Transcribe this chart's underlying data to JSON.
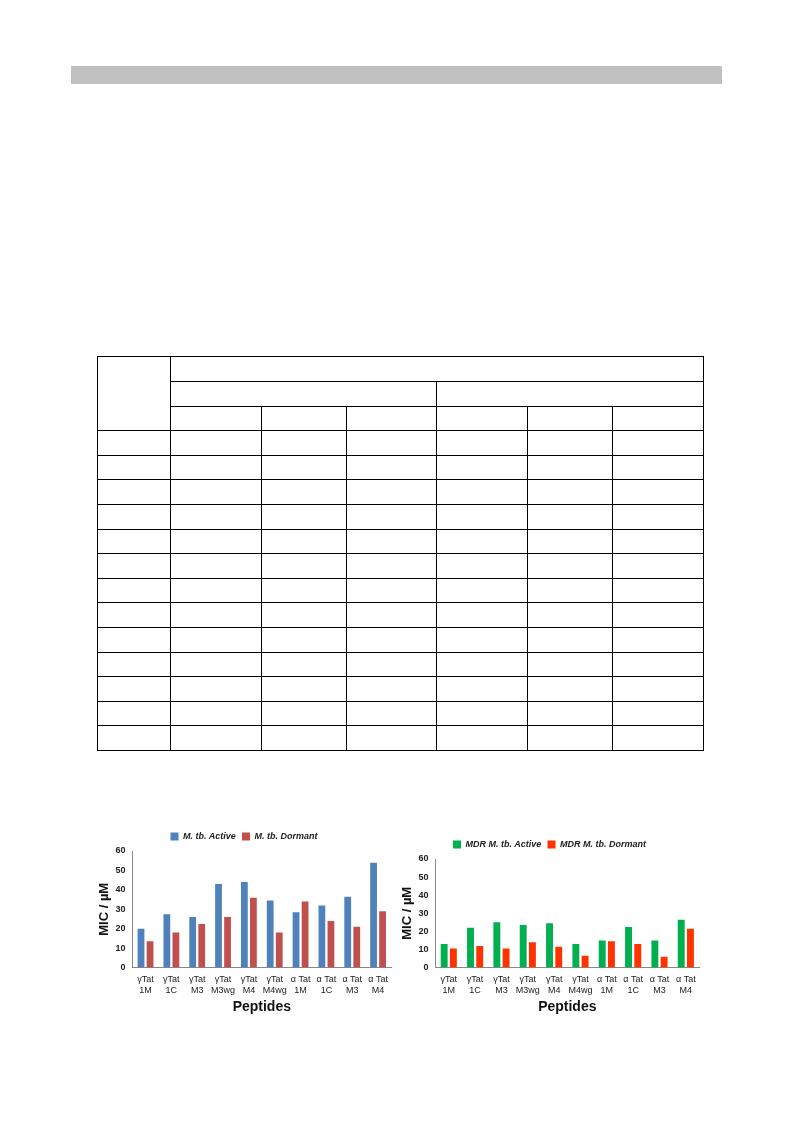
{
  "chart_data": [
    {
      "type": "bar",
      "categories": [
        "γTat 1M",
        "γTat 1C",
        "γTat M3",
        "γTat M3wg",
        "γTat M4",
        "γTat M4wg",
        "α Tat 1M",
        "α Tat 1C",
        "α Tat M3",
        "α Tat M4"
      ],
      "xlabel": "Peptides",
      "ylabel": "MIC / µM",
      "ylim": [
        0,
        60
      ],
      "yticks": [
        0,
        10,
        20,
        30,
        40,
        50,
        60
      ],
      "legend": "top",
      "series": [
        {
          "name": "M. tb. Active",
          "color": "#4f81bd",
          "values": [
            20,
            27.5,
            26,
            43,
            44,
            34.5,
            28.5,
            32,
            36.5,
            54
          ]
        },
        {
          "name": "M. tb. Dormant",
          "color": "#c0504d",
          "values": [
            13.5,
            18,
            22.5,
            26,
            36,
            18,
            34,
            24,
            21,
            29
          ]
        }
      ]
    },
    {
      "type": "bar",
      "categories": [
        "γTat 1M",
        "γTat 1C",
        "γTat M3",
        "γTat M3wg",
        "γTat M4",
        "γTat M4wg",
        "α Tat 1M",
        "α Tat 1C",
        "α Tat M3",
        "α Tat M4"
      ],
      "xlabel": "Peptides",
      "ylabel": "MIC / µM",
      "ylim": [
        0,
        60
      ],
      "yticks": [
        0,
        10,
        20,
        30,
        40,
        50,
        60
      ],
      "legend": "top",
      "series": [
        {
          "name": "MDR M. tb. Active",
          "color": "#00b050",
          "values": [
            13,
            22,
            25,
            23.5,
            24.5,
            13,
            15,
            22.5,
            15,
            26.5
          ]
        },
        {
          "name": "MDR M. tb. Dormant",
          "color": "#ff3300",
          "values": [
            10.5,
            12,
            10.5,
            14,
            11.5,
            6.5,
            14.5,
            13,
            6,
            21.5
          ]
        }
      ]
    }
  ]
}
